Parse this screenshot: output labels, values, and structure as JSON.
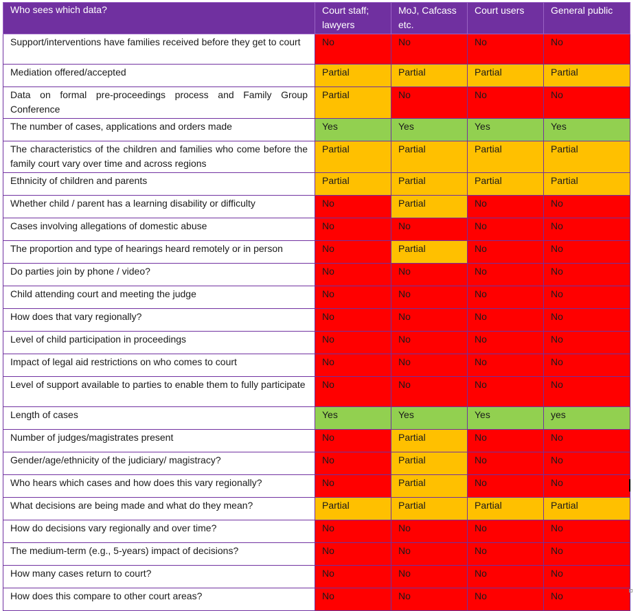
{
  "table": {
    "headers": [
      "Who sees which data?",
      "Court staff; lawyers",
      "MoJ, Cafcass etc.",
      "Court users",
      "General public"
    ],
    "rows": [
      {
        "q": "Support/interventions have families received before they get to court",
        "v": [
          "No",
          "No",
          "No",
          "No"
        ],
        "c": [
          "red",
          "red",
          "red",
          "red"
        ]
      },
      {
        "q": "Mediation offered/accepted",
        "v": [
          "Partial",
          "Partial",
          "Partial",
          "Partial"
        ],
        "c": [
          "amber",
          "amber",
          "amber",
          "amber"
        ]
      },
      {
        "q": "Data on formal pre-proceedings process and Family Group Conference",
        "v": [
          "Partial",
          "No",
          "No",
          "No"
        ],
        "c": [
          "amber",
          "red",
          "red",
          "red"
        ]
      },
      {
        "q": "The number of cases, applications and orders made",
        "v": [
          "Yes",
          "Yes",
          "Yes",
          "Yes"
        ],
        "c": [
          "green",
          "green",
          "green",
          "green"
        ]
      },
      {
        "q": "The characteristics of the children and families who come before the family court vary over time and across regions",
        "v": [
          "Partial",
          "Partial",
          "Partial",
          "Partial"
        ],
        "c": [
          "amber",
          "amber",
          "amber",
          "amber"
        ]
      },
      {
        "q": "Ethnicity of children and parents",
        "v": [
          "Partial",
          "Partial",
          "Partial",
          "Partial"
        ],
        "c": [
          "amber",
          "amber",
          "amber",
          "amber"
        ]
      },
      {
        "q": "Whether child / parent has a learning disability or difficulty",
        "v": [
          "No",
          "Partial",
          "No",
          "No"
        ],
        "c": [
          "red",
          "amber",
          "red",
          "red"
        ]
      },
      {
        "q": "Cases involving allegations of domestic abuse",
        "v": [
          "No",
          "No",
          "No",
          "No"
        ],
        "c": [
          "red",
          "red",
          "red",
          "red"
        ]
      },
      {
        "q": "The proportion and type of hearings heard remotely or in person",
        "v": [
          "No",
          "Partial",
          "No",
          "No"
        ],
        "c": [
          "red",
          "amber",
          "red",
          "red"
        ]
      },
      {
        "q": "Do parties join by phone / video?",
        "v": [
          "No",
          "No",
          "No",
          "No"
        ],
        "c": [
          "red",
          "red",
          "red",
          "red"
        ]
      },
      {
        "q": "Child attending court and meeting the judge",
        "v": [
          "No",
          "No",
          "No",
          "No"
        ],
        "c": [
          "red",
          "red",
          "red",
          "red"
        ]
      },
      {
        "q": "How does that vary regionally?",
        "v": [
          "No",
          "No",
          "No",
          "No"
        ],
        "c": [
          "red",
          "red",
          "red",
          "red"
        ]
      },
      {
        "q": "Level of child participation in proceedings",
        "v": [
          "No",
          "No",
          "No",
          "No"
        ],
        "c": [
          "red",
          "red",
          "red",
          "red"
        ]
      },
      {
        "q": "Impact of legal aid restrictions on who comes to court",
        "v": [
          "No",
          "No",
          "No",
          "No"
        ],
        "c": [
          "red",
          "red",
          "red",
          "red"
        ]
      },
      {
        "q": "Level of support available to parties to enable them to fully participate",
        "v": [
          "No",
          "No",
          "No",
          "No"
        ],
        "c": [
          "red",
          "red",
          "red",
          "red"
        ]
      },
      {
        "q": "Length of cases",
        "v": [
          "Yes",
          "Yes",
          "Yes",
          "yes"
        ],
        "c": [
          "green",
          "green",
          "green",
          "green"
        ]
      },
      {
        "q": "Number of judges/magistrates present",
        "v": [
          "No",
          "Partial",
          "No",
          "No"
        ],
        "c": [
          "red",
          "amber",
          "red",
          "red"
        ]
      },
      {
        "q": "Gender/age/ethnicity of the judiciary/ magistracy?",
        "v": [
          "No",
          "Partial",
          "No",
          "No"
        ],
        "c": [
          "red",
          "amber",
          "red",
          "red"
        ]
      },
      {
        "q": "Who hears which cases and how does this vary regionally?",
        "v": [
          "No",
          "Partial",
          "No",
          "No"
        ],
        "c": [
          "red",
          "amber",
          "red",
          "red"
        ]
      },
      {
        "q": "What decisions are being made and what do they mean?",
        "v": [
          "Partial",
          "Partial",
          "Partial",
          "Partial"
        ],
        "c": [
          "amber",
          "amber",
          "amber",
          "amber"
        ]
      },
      {
        "q": "How do decisions vary regionally and over time?",
        "v": [
          "No",
          "No",
          "No",
          "No"
        ],
        "c": [
          "red",
          "red",
          "red",
          "red"
        ]
      },
      {
        "q": "The medium-term (e.g., 5-years) impact of decisions?",
        "v": [
          "No",
          "No",
          "No",
          "No"
        ],
        "c": [
          "red",
          "red",
          "red",
          "red"
        ]
      },
      {
        "q": "How many cases return to court?",
        "v": [
          "No",
          "No",
          "No",
          "No"
        ],
        "c": [
          "red",
          "red",
          "red",
          "red"
        ]
      },
      {
        "q": "How does this compare to other court areas?",
        "v": [
          "No",
          "No",
          "No",
          "No"
        ],
        "c": [
          "red",
          "red",
          "red",
          "red"
        ]
      }
    ]
  },
  "colors": {
    "header": "#7030a0",
    "red": "#ff0000",
    "amber": "#ffc000",
    "green": "#92d050"
  }
}
